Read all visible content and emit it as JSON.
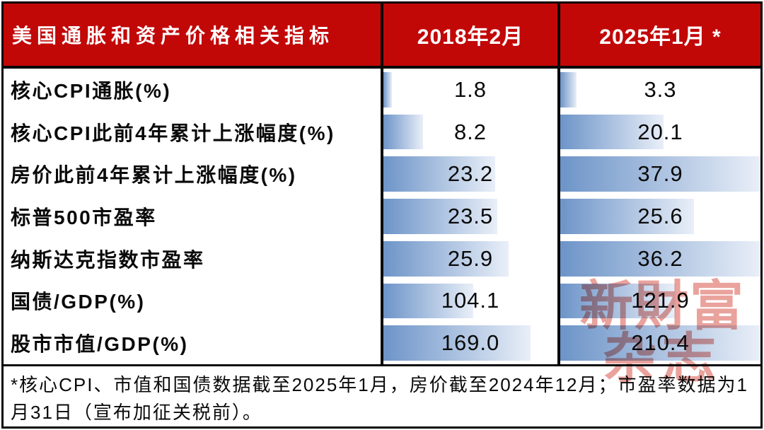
{
  "table": {
    "header": {
      "title": "美国通胀和资产价格相关指标",
      "col_2018": "2018年2月",
      "col_2025": "2025年1月 *"
    },
    "rows": [
      {
        "label": "核心CPI通胀(%)",
        "v2018": "1.8",
        "v2025": "3.3",
        "bar2018_pct": 5,
        "bar2025_pct": 8.2
      },
      {
        "label": "核心CPI此前4年累计上涨幅度(%)",
        "v2018": "8.2",
        "v2025": "20.1",
        "bar2018_pct": 22.9,
        "bar2025_pct": 51.6
      },
      {
        "label": "房价此前4年累计上涨幅度(%)",
        "v2018": "23.2",
        "v2025": "37.9",
        "bar2018_pct": 64.2,
        "bar2025_pct": 100
      },
      {
        "label": "标普500市盈率",
        "v2018": "23.5",
        "v2025": "25.6",
        "bar2018_pct": 65.3,
        "bar2025_pct": 66.9
      },
      {
        "label": "纳斯达克指数市盈率",
        "v2018": "25.9",
        "v2025": "36.2",
        "bar2018_pct": 72,
        "bar2025_pct": 100
      },
      {
        "label": "国债/GDP(%)",
        "v2018": "104.1",
        "v2025": "121.9",
        "bar2018_pct": 51.5,
        "bar2025_pct": 57.6
      },
      {
        "label": "股市市值/GDP(%)",
        "v2018": "169.0",
        "v2025": "210.4",
        "bar2018_pct": 84.6,
        "bar2025_pct": 100
      }
    ],
    "footnote": "*核心CPI、市值和国债数据截至2025年1月，房价截至2024年12月；市盈率数据为1月31日（宣布加征关税前）。"
  },
  "watermark": {
    "line1": "新財富",
    "line2": "杂志"
  },
  "colors": {
    "header_bg": "#c20707",
    "header_text": "#ffffff",
    "bar_gradient_start": "#6d94c8",
    "bar_gradient_end": "#e9eff8",
    "border": "#070707",
    "watermark": "#d9554a"
  },
  "chart_data": {
    "type": "bar",
    "orientation": "horizontal",
    "title": "美国通胀和资产价格相关指标",
    "categories": [
      "核心CPI通胀(%)",
      "核心CPI此前4年累计上涨幅度(%)",
      "房价此前4年累计上涨幅度(%)",
      "标普500市盈率",
      "纳斯达克指数市盈率",
      "国债/GDP(%)",
      "股市市值/GDP(%)"
    ],
    "series": [
      {
        "name": "2018年2月",
        "values": [
          1.8,
          8.2,
          23.2,
          23.5,
          25.9,
          104.1,
          169.0
        ]
      },
      {
        "name": "2025年1月 *",
        "values": [
          3.3,
          20.1,
          37.9,
          25.6,
          36.2,
          121.9,
          210.4
        ]
      }
    ],
    "footnote": "*核心CPI、市值和国债数据截至2025年1月，房价截至2024年12月；市盈率数据为1月31日（宣布加征关税前）。",
    "legend_position": "column-headers",
    "grid": false,
    "bar_style": "gradient-databar-in-cell"
  }
}
